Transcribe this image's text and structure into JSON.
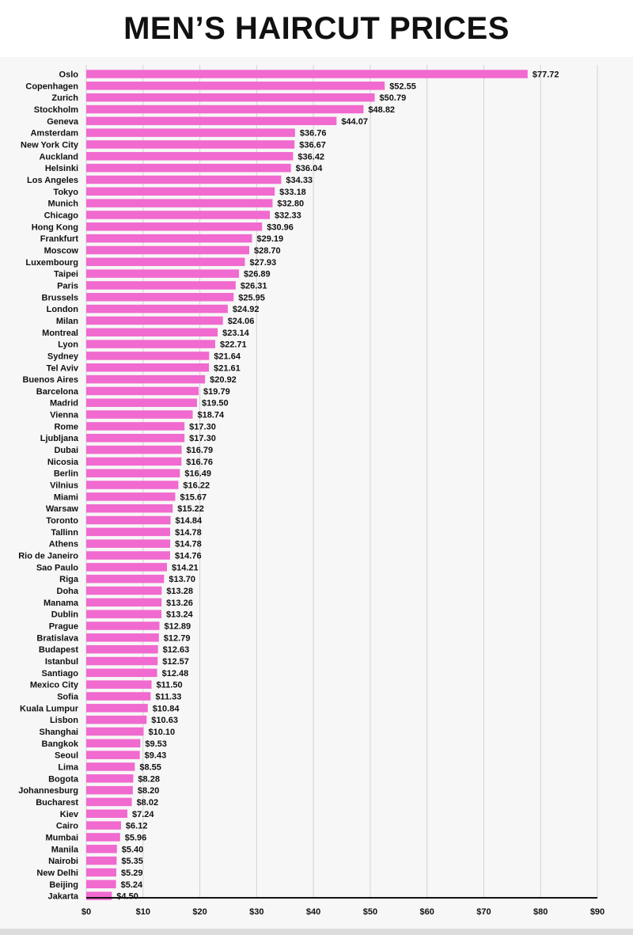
{
  "title": "MEN’S HAIRCUT PRICES",
  "colors": {
    "bar": "#f06acf",
    "grid": "#d3d3d3",
    "axis": "#111111",
    "text": "#111111"
  },
  "chart_data": {
    "type": "bar",
    "orientation": "horizontal",
    "title": "MEN’S HAIRCUT PRICES",
    "xlim": [
      0,
      90
    ],
    "xticks": [
      0,
      10,
      20,
      30,
      40,
      50,
      60,
      70,
      80,
      90
    ],
    "xtick_labels": [
      "$0",
      "$10",
      "$20",
      "$30",
      "$40",
      "$50",
      "$60",
      "$70",
      "$80",
      "$90"
    ],
    "grid": true,
    "categories": [
      "Oslo",
      "Copenhagen",
      "Zurich",
      "Stockholm",
      "Geneva",
      "Amsterdam",
      "New York City",
      "Auckland",
      "Helsinki",
      "Los Angeles",
      "Tokyo",
      "Munich",
      "Chicago",
      "Hong Kong",
      "Frankfurt",
      "Moscow",
      "Luxembourg",
      "Taipei",
      "Paris",
      "Brussels",
      "London",
      "Milan",
      "Montreal",
      "Lyon",
      "Sydney",
      "Tel Aviv",
      "Buenos Aires",
      "Barcelona",
      "Madrid",
      "Vienna",
      "Rome",
      "Ljubljana",
      "Dubai",
      "Nicosia",
      "Berlin",
      "Vilnius",
      "Miami",
      "Warsaw",
      "Toronto",
      "Tallinn",
      "Athens",
      "Rio de Janeiro",
      "Sao Paulo",
      "Riga",
      "Doha",
      "Manama",
      "Dublin",
      "Prague",
      "Bratislava",
      "Budapest",
      "Istanbul",
      "Santiago",
      "Mexico City",
      "Sofia",
      "Kuala Lumpur",
      "Lisbon",
      "Shanghai",
      "Bangkok",
      "Seoul",
      "Lima",
      "Bogota",
      "Johannesburg",
      "Bucharest",
      "Kiev",
      "Cairo",
      "Mumbai",
      "Manila",
      "Nairobi",
      "New Delhi",
      "Beijing",
      "Jakarta"
    ],
    "values": [
      77.72,
      52.55,
      50.79,
      48.82,
      44.07,
      36.76,
      36.67,
      36.42,
      36.04,
      34.33,
      33.18,
      32.8,
      32.33,
      30.96,
      29.19,
      28.7,
      27.93,
      26.89,
      26.31,
      25.95,
      24.92,
      24.06,
      23.14,
      22.71,
      21.64,
      21.61,
      20.92,
      19.79,
      19.5,
      18.74,
      17.3,
      17.3,
      16.79,
      16.76,
      16.49,
      16.22,
      15.67,
      15.22,
      14.84,
      14.78,
      14.78,
      14.76,
      14.21,
      13.7,
      13.28,
      13.26,
      13.24,
      12.89,
      12.79,
      12.63,
      12.57,
      12.48,
      11.5,
      11.33,
      10.84,
      10.63,
      10.1,
      9.53,
      9.43,
      8.55,
      8.28,
      8.2,
      8.02,
      7.24,
      6.12,
      5.96,
      5.4,
      5.35,
      5.29,
      5.24,
      4.5
    ],
    "value_labels": [
      "$77.72",
      "$52.55",
      "$50.79",
      "$48.82",
      "$44.07",
      "$36.76",
      "$36.67",
      "$36.42",
      "$36.04",
      "$34.33",
      "$33.18",
      "$32.80",
      "$32.33",
      "$30.96",
      "$29.19",
      "$28.70",
      "$27.93",
      "$26.89",
      "$26.31",
      "$25.95",
      "$24.92",
      "$24.06",
      "$23.14",
      "$22.71",
      "$21.64",
      "$21.61",
      "$20.92",
      "$19.79",
      "$19.50",
      "$18.74",
      "$17.30",
      "$17.30",
      "$16.79",
      "$16.76",
      "$16.49",
      "$16.22",
      "$15.67",
      "$15.22",
      "$14.84",
      "$14.78",
      "$14.78",
      "$14.76",
      "$14.21",
      "$13.70",
      "$13.28",
      "$13.26",
      "$13.24",
      "$12.89",
      "$12.79",
      "$12.63",
      "$12.57",
      "$12.48",
      "$11.50",
      "$11.33",
      "$10.84",
      "$10.63",
      "$10.10",
      "$9.53",
      "$9.43",
      "$8.55",
      "$8.28",
      "$8.20",
      "$8.02",
      "$7.24",
      "$6.12",
      "$5.96",
      "$5.40",
      "$5.35",
      "$5.29",
      "$5.24",
      "$4.50"
    ]
  }
}
